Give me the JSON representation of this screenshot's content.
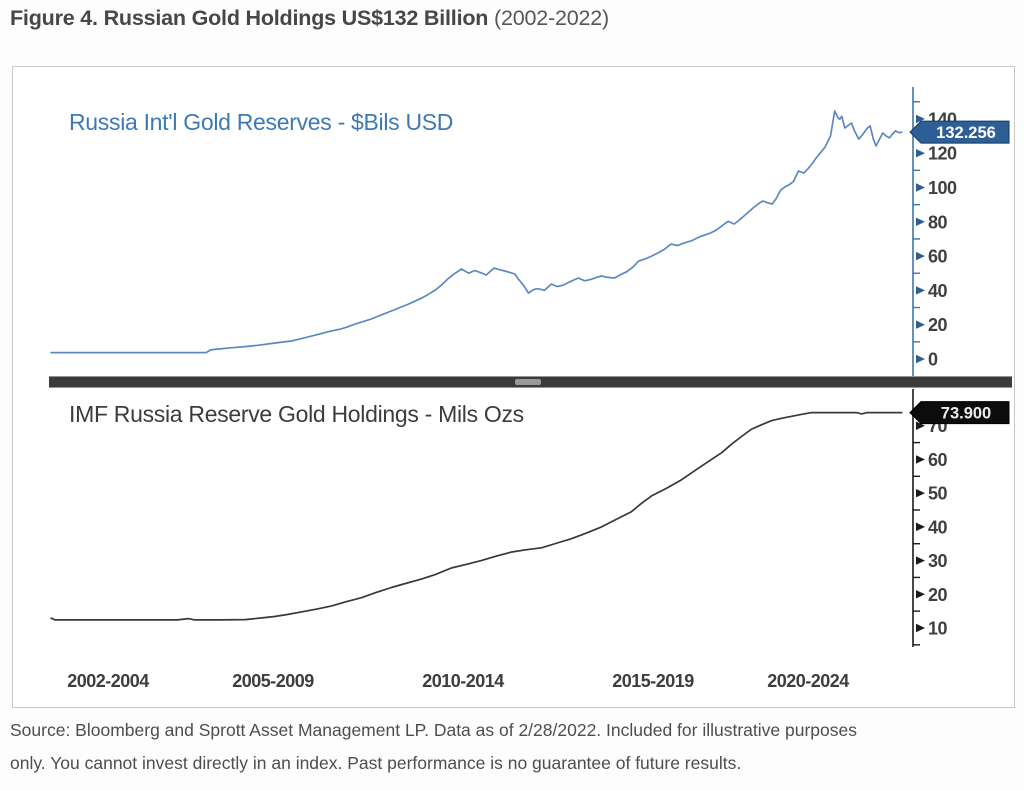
{
  "figure_title": {
    "bold": "Figure 4. Russian Gold Holdings US$132 Billion",
    "regular": " (2002-2022)"
  },
  "source_note": {
    "line1": "Source: Bloomberg and Sprott Asset Management LP. Data as of 2/28/2022. Included for illustrative purposes",
    "line2": "only. You cannot invest directly in an index. Past performance is no guarantee of future results."
  },
  "xaxis": {
    "labels": [
      "2002-2004",
      "2005-2009",
      "2010-2014",
      "2015-2019",
      "2020-2024"
    ]
  },
  "chart_data": [
    {
      "type": "line",
      "title": "Russia Int'l Gold Reserves - $Bils USD",
      "ylabel": "US$ billions",
      "line_color": "#5d89c0",
      "axis_color": "#3f74ad",
      "tick_marker_color": "#2f5e91",
      "tick_label_color": "#3f3f3f",
      "xlim": [
        2001.95,
        2022.2
      ],
      "ylim": [
        -10.5,
        158.6
      ],
      "yticks_major": [
        0,
        20,
        40,
        60,
        80,
        100,
        120,
        140
      ],
      "yticks_minor": [
        10,
        30,
        50,
        70,
        90,
        110,
        130,
        150
      ],
      "last_value": {
        "label": "132.256",
        "value": 132.256,
        "bg": "#2d5f96",
        "border": "#123a5e",
        "text_color": "#ffffff"
      },
      "points": [
        [
          2002.0,
          3.7
        ],
        [
          2003.0,
          3.7
        ],
        [
          2004.0,
          3.7
        ],
        [
          2005.0,
          3.7
        ],
        [
          2005.68,
          3.7
        ],
        [
          2005.78,
          5.3
        ],
        [
          2006.0,
          5.9
        ],
        [
          2006.3,
          6.6
        ],
        [
          2006.6,
          7.2
        ],
        [
          2006.9,
          8.0
        ],
        [
          2007.2,
          9.0
        ],
        [
          2007.5,
          9.9
        ],
        [
          2007.7,
          10.5
        ],
        [
          2007.95,
          12.0
        ],
        [
          2008.2,
          13.5
        ],
        [
          2008.45,
          15.1
        ],
        [
          2008.64,
          16.3
        ],
        [
          2008.85,
          17.4
        ],
        [
          2009.0,
          18.5
        ],
        [
          2009.2,
          20.3
        ],
        [
          2009.4,
          21.8
        ],
        [
          2009.6,
          23.4
        ],
        [
          2009.8,
          25.4
        ],
        [
          2010.07,
          28.0
        ],
        [
          2010.25,
          29.8
        ],
        [
          2010.45,
          31.8
        ],
        [
          2010.6,
          33.4
        ],
        [
          2010.8,
          35.7
        ],
        [
          2010.95,
          37.8
        ],
        [
          2011.13,
          40.5
        ],
        [
          2011.25,
          43.0
        ],
        [
          2011.4,
          46.5
        ],
        [
          2011.55,
          49.5
        ],
        [
          2011.73,
          52.5
        ],
        [
          2011.9,
          50.0
        ],
        [
          2012.05,
          51.6
        ],
        [
          2012.2,
          50.2
        ],
        [
          2012.32,
          49.0
        ],
        [
          2012.5,
          53.0
        ],
        [
          2012.65,
          52.0
        ],
        [
          2012.8,
          51.0
        ],
        [
          2012.99,
          49.6
        ],
        [
          2013.1,
          46.0
        ],
        [
          2013.2,
          43.0
        ],
        [
          2013.32,
          38.5
        ],
        [
          2013.45,
          40.6
        ],
        [
          2013.55,
          41.0
        ],
        [
          2013.7,
          40.0
        ],
        [
          2013.86,
          43.7
        ],
        [
          2014.0,
          42.3
        ],
        [
          2014.14,
          43.0
        ],
        [
          2014.3,
          45.0
        ],
        [
          2014.5,
          47.2
        ],
        [
          2014.65,
          45.6
        ],
        [
          2014.8,
          46.4
        ],
        [
          2014.95,
          47.7
        ],
        [
          2015.05,
          48.4
        ],
        [
          2015.2,
          47.6
        ],
        [
          2015.36,
          47.2
        ],
        [
          2015.5,
          49.1
        ],
        [
          2015.65,
          50.9
        ],
        [
          2015.8,
          53.7
        ],
        [
          2015.93,
          57.1
        ],
        [
          2016.1,
          58.5
        ],
        [
          2016.24,
          60.0
        ],
        [
          2016.4,
          62.0
        ],
        [
          2016.55,
          64.1
        ],
        [
          2016.7,
          67.0
        ],
        [
          2016.85,
          66.1
        ],
        [
          2017.0,
          67.5
        ],
        [
          2017.2,
          69.1
        ],
        [
          2017.4,
          71.5
        ],
        [
          2017.6,
          73.1
        ],
        [
          2017.75,
          74.8
        ],
        [
          2017.9,
          77.5
        ],
        [
          2018.05,
          80.3
        ],
        [
          2018.2,
          78.7
        ],
        [
          2018.35,
          81.7
        ],
        [
          2018.5,
          84.9
        ],
        [
          2018.65,
          88.2
        ],
        [
          2018.8,
          91.0
        ],
        [
          2018.88,
          92.1
        ],
        [
          2019.0,
          91.0
        ],
        [
          2019.1,
          90.4
        ],
        [
          2019.2,
          93.9
        ],
        [
          2019.3,
          98.5
        ],
        [
          2019.4,
          100.3
        ],
        [
          2019.5,
          101.6
        ],
        [
          2019.6,
          103.5
        ],
        [
          2019.72,
          109.6
        ],
        [
          2019.85,
          108.4
        ],
        [
          2019.95,
          111.0
        ],
        [
          2020.05,
          114.0
        ],
        [
          2020.15,
          117.5
        ],
        [
          2020.25,
          120.5
        ],
        [
          2020.35,
          123.5
        ],
        [
          2020.42,
          127.0
        ],
        [
          2020.48,
          130.0
        ],
        [
          2020.58,
          144.6
        ],
        [
          2020.65,
          141.0
        ],
        [
          2020.7,
          139.8
        ],
        [
          2020.75,
          141.5
        ],
        [
          2020.82,
          134.7
        ],
        [
          2020.9,
          136.2
        ],
        [
          2020.98,
          137.6
        ],
        [
          2021.05,
          133.0
        ],
        [
          2021.15,
          128.3
        ],
        [
          2021.25,
          131.0
        ],
        [
          2021.35,
          134.5
        ],
        [
          2021.42,
          135.9
        ],
        [
          2021.5,
          128.0
        ],
        [
          2021.56,
          124.2
        ],
        [
          2021.65,
          128.5
        ],
        [
          2021.72,
          131.8
        ],
        [
          2021.8,
          130.0
        ],
        [
          2021.88,
          128.9
        ],
        [
          2021.95,
          131.2
        ],
        [
          2022.02,
          133.0
        ],
        [
          2022.1,
          132.0
        ],
        [
          2022.17,
          132.256
        ]
      ]
    },
    {
      "type": "line",
      "title": "IMF Russia Reserve Gold Holdings - Mils Ozs",
      "ylabel": "millions of ounces",
      "line_color": "#383838",
      "axis_color": "#1a1a1a",
      "tick_marker_color": "#1b1b1b",
      "tick_label_color": "#3f3f3f",
      "xlim": [
        2001.95,
        2022.2
      ],
      "ylim": [
        4.36,
        80.9
      ],
      "yticks_major": [
        10,
        20,
        30,
        40,
        50,
        60,
        70
      ],
      "yticks_minor": [
        5,
        15,
        25,
        35,
        45,
        55,
        65,
        75
      ],
      "last_value": {
        "label": "73.900",
        "value": 73.9,
        "bg": "#0c0c0c",
        "border": "#000000",
        "text_color": "#ececec"
      },
      "points": [
        [
          2002.0,
          12.9
        ],
        [
          2002.1,
          12.4
        ],
        [
          2003.0,
          12.4
        ],
        [
          2004.0,
          12.4
        ],
        [
          2005.0,
          12.4
        ],
        [
          2005.25,
          12.8
        ],
        [
          2005.4,
          12.4
        ],
        [
          2006.0,
          12.4
        ],
        [
          2006.6,
          12.5
        ],
        [
          2007.0,
          13.0
        ],
        [
          2007.3,
          13.4
        ],
        [
          2007.6,
          14.0
        ],
        [
          2007.95,
          14.8
        ],
        [
          2008.3,
          15.6
        ],
        [
          2008.64,
          16.5
        ],
        [
          2009.0,
          17.8
        ],
        [
          2009.36,
          19.0
        ],
        [
          2009.7,
          20.5
        ],
        [
          2010.07,
          22.0
        ],
        [
          2010.4,
          23.2
        ],
        [
          2010.78,
          24.5
        ],
        [
          2011.1,
          25.8
        ],
        [
          2011.49,
          27.8
        ],
        [
          2011.85,
          28.9
        ],
        [
          2012.2,
          30.0
        ],
        [
          2012.55,
          31.3
        ],
        [
          2012.91,
          32.5
        ],
        [
          2013.25,
          33.2
        ],
        [
          2013.63,
          33.8
        ],
        [
          2014.0,
          35.2
        ],
        [
          2014.34,
          36.5
        ],
        [
          2014.7,
          38.2
        ],
        [
          2015.05,
          40.0
        ],
        [
          2015.4,
          42.2
        ],
        [
          2015.76,
          44.5
        ],
        [
          2016.0,
          47.0
        ],
        [
          2016.24,
          49.2
        ],
        [
          2016.6,
          51.5
        ],
        [
          2016.95,
          54.0
        ],
        [
          2017.3,
          57.0
        ],
        [
          2017.66,
          60.0
        ],
        [
          2017.9,
          62.0
        ],
        [
          2018.13,
          64.5
        ],
        [
          2018.37,
          66.8
        ],
        [
          2018.61,
          69.0
        ],
        [
          2018.85,
          70.3
        ],
        [
          2019.08,
          71.5
        ],
        [
          2019.32,
          72.2
        ],
        [
          2019.56,
          72.8
        ],
        [
          2019.8,
          73.4
        ],
        [
          2020.03,
          73.9
        ],
        [
          2020.6,
          73.9
        ],
        [
          2021.1,
          73.9
        ],
        [
          2021.22,
          73.5
        ],
        [
          2021.35,
          73.9
        ],
        [
          2022.17,
          73.9
        ]
      ]
    }
  ]
}
